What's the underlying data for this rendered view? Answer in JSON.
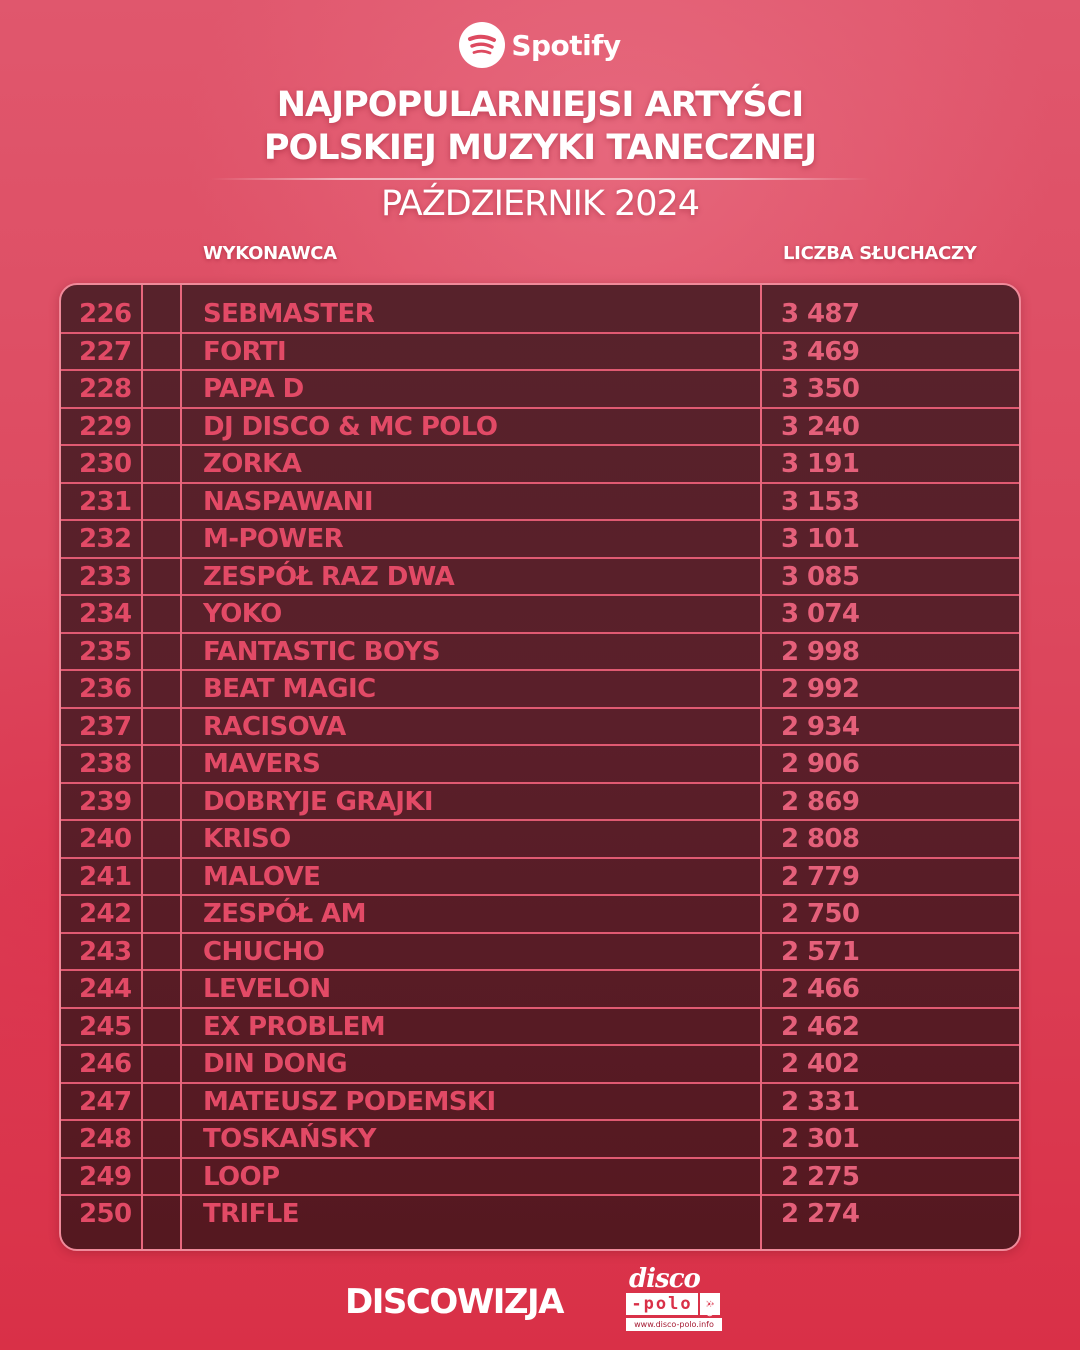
{
  "header": {
    "brand": "Spotify",
    "brand_icon": "spotify-icon",
    "title_line1": "NAJPOPULARNIEJSI ARTYŚCI",
    "title_line2": "POLSKIEJ MUZYKI TANECZNEJ",
    "subtitle": "PAŹDZIERNIK 2024"
  },
  "columns": {
    "artist": "WYKONAWCA",
    "listeners": "LICZBA SŁUCHACZY"
  },
  "rows": [
    {
      "rank": "226",
      "artist": "SEBMASTER",
      "listeners": "3 487"
    },
    {
      "rank": "227",
      "artist": "FORTI",
      "listeners": "3 469"
    },
    {
      "rank": "228",
      "artist": "PAPA D",
      "listeners": "3 350"
    },
    {
      "rank": "229",
      "artist": "DJ DISCO & MC POLO",
      "listeners": "3 240"
    },
    {
      "rank": "230",
      "artist": "ZORKA",
      "listeners": "3 191"
    },
    {
      "rank": "231",
      "artist": "NASPAWANI",
      "listeners": "3 153"
    },
    {
      "rank": "232",
      "artist": "M-POWER",
      "listeners": "3 101"
    },
    {
      "rank": "233",
      "artist": "ZESPÓŁ RAZ DWA",
      "listeners": "3 085"
    },
    {
      "rank": "234",
      "artist": "YOKO",
      "listeners": "3 074"
    },
    {
      "rank": "235",
      "artist": "FANTASTIC BOYS",
      "listeners": "2 998"
    },
    {
      "rank": "236",
      "artist": "BEAT MAGIC",
      "listeners": "2 992"
    },
    {
      "rank": "237",
      "artist": "RACISOVA",
      "listeners": "2 934"
    },
    {
      "rank": "238",
      "artist": "MAVERS",
      "listeners": "2 906"
    },
    {
      "rank": "239",
      "artist": "DOBRYJE GRAJKI",
      "listeners": "2 869"
    },
    {
      "rank": "240",
      "artist": "KRISO",
      "listeners": "2 808"
    },
    {
      "rank": "241",
      "artist": "MALOVE",
      "listeners": "2 779"
    },
    {
      "rank": "242",
      "artist": "ZESPÓŁ AM",
      "listeners": "2 750"
    },
    {
      "rank": "243",
      "artist": "CHUCHO",
      "listeners": "2 571"
    },
    {
      "rank": "244",
      "artist": "LEVELON",
      "listeners": "2 466"
    },
    {
      "rank": "245",
      "artist": "EX PROBLEM",
      "listeners": "2 462"
    },
    {
      "rank": "246",
      "artist": "DIN DONG",
      "listeners": "2 402"
    },
    {
      "rank": "247",
      "artist": "MATEUSZ PODEMSKI",
      "listeners": "2 331"
    },
    {
      "rank": "248",
      "artist": "TOSKAŃSKY",
      "listeners": "2 301"
    },
    {
      "rank": "249",
      "artist": "LOOP",
      "listeners": "2 275"
    },
    {
      "rank": "250",
      "artist": "TRIFLE",
      "listeners": "2 274"
    }
  ],
  "footer": {
    "discowizja": "DISCOWIZJA",
    "dp_disco": "disco",
    "dp_polo": "-polo",
    "dp_arrow": "»",
    "dp_info": "info",
    "dp_url": "www.disco-polo.info"
  },
  "colors": {
    "background": "#dd4a60",
    "table_bg": "#57222b",
    "table_border": "#f08a9a",
    "row_line": "#e05a72",
    "text_accent": "#e24a66",
    "text_light": "#ffffff"
  }
}
